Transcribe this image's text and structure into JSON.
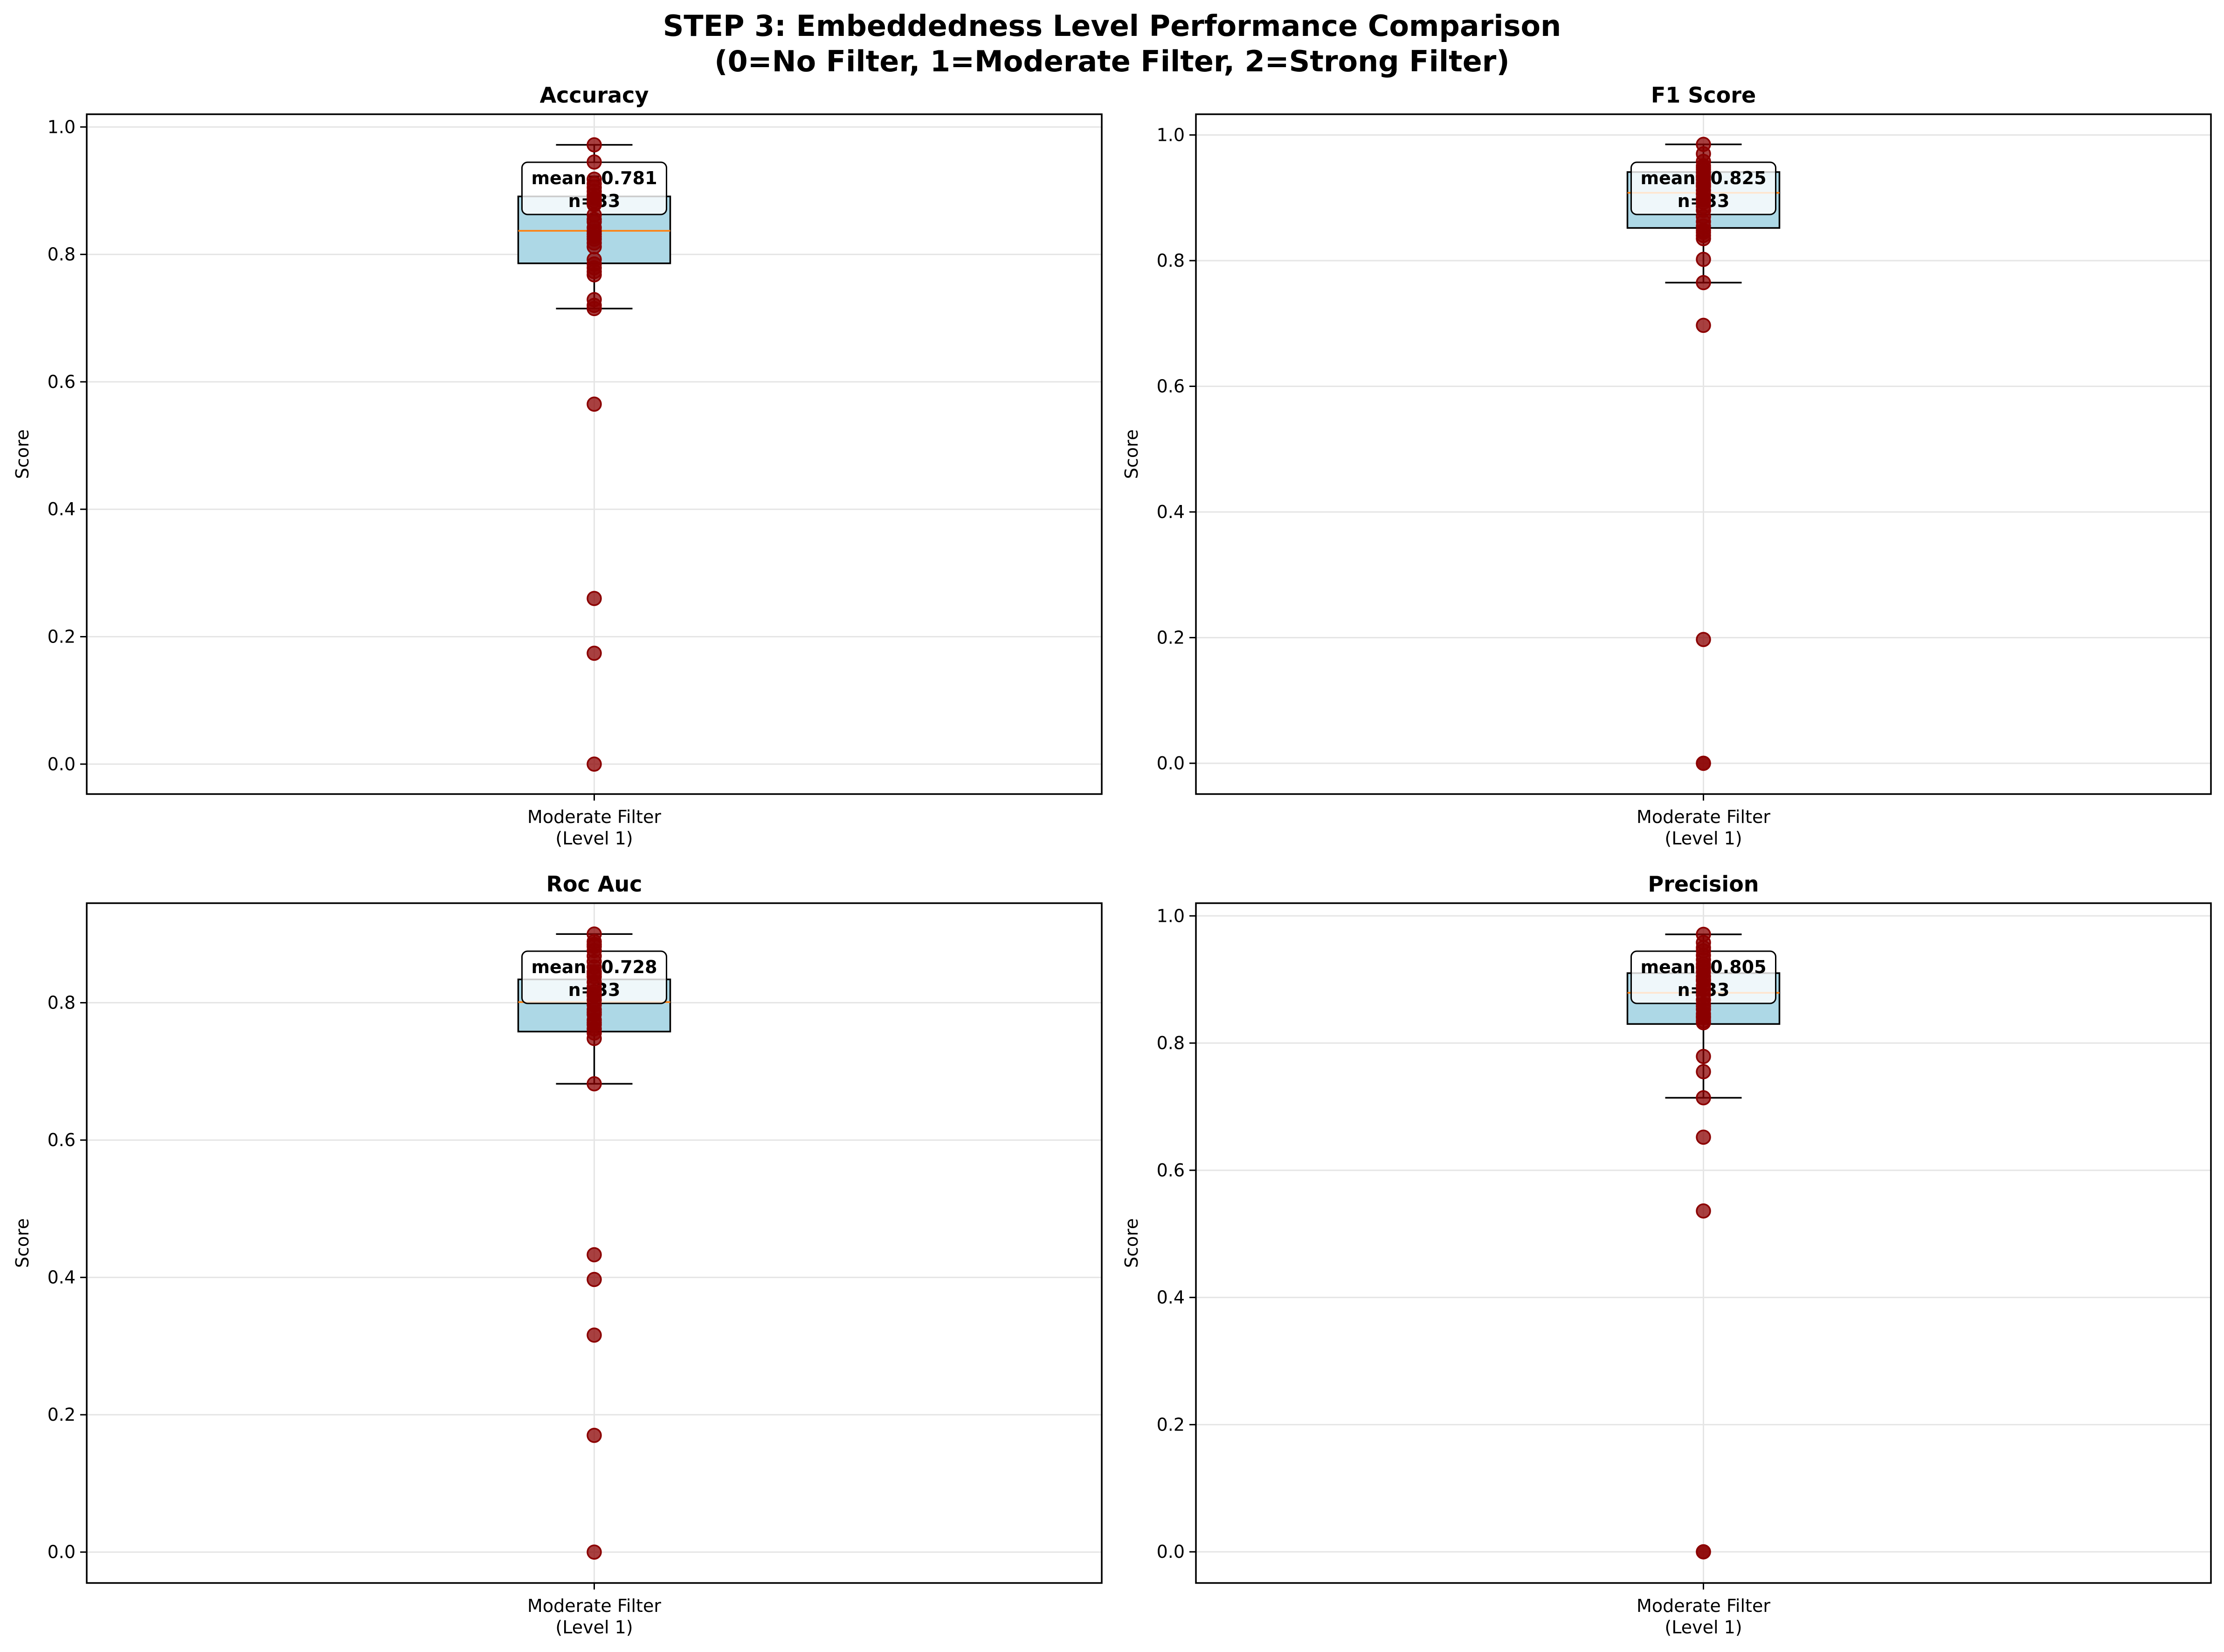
{
  "figure": {
    "title_line1": "STEP 3: Embeddedness Level Performance Comparison",
    "title_line2": "(0=No Filter, 1=Moderate Filter, 2=Strong Filter)"
  },
  "colors": {
    "box_fill": "#add8e6",
    "median": "#ff7f0e",
    "points": "#8b0000",
    "grid": "#e5e5e5"
  },
  "chart_data": [
    {
      "type": "box",
      "title": "Accuracy",
      "ylabel": "Score",
      "categories": [
        "Moderate Filter\n(Level 1)"
      ],
      "ylim": [
        -0.047,
        1.02
      ],
      "yticks": [
        0.0,
        0.2,
        0.4,
        0.6,
        0.8,
        1.0
      ],
      "grid": true,
      "box": {
        "q1": 0.786,
        "median": 0.837,
        "q3": 0.891,
        "whisker_low": 0.715,
        "whisker_high": 0.972
      },
      "annotation": {
        "mean_label": "mean=0.781",
        "n_label": "n=33"
      },
      "points": [
        0.972,
        0.945,
        0.918,
        0.911,
        0.905,
        0.899,
        0.893,
        0.888,
        0.884,
        0.878,
        0.855,
        0.851,
        0.842,
        0.836,
        0.832,
        0.828,
        0.824,
        0.818,
        0.812,
        0.792,
        0.785,
        0.779,
        0.773,
        0.768,
        0.729,
        0.72,
        0.715,
        0.565,
        0.26,
        0.174,
        0.0,
        0.88,
        0.862
      ]
    },
    {
      "type": "box",
      "title": "F1 Score",
      "ylabel": "Score",
      "categories": [
        "Moderate Filter\n(Level 1)"
      ],
      "ylim": [
        -0.049,
        1.033
      ],
      "yticks": [
        0.0,
        0.2,
        0.4,
        0.6,
        0.8,
        1.0
      ],
      "grid": true,
      "box": {
        "q1": 0.852,
        "median": 0.908,
        "q3": 0.941,
        "whisker_low": 0.765,
        "whisker_high": 0.985
      },
      "annotation": {
        "mean_label": "mean=0.825",
        "n_label": "n=33"
      },
      "points": [
        0.985,
        0.97,
        0.958,
        0.951,
        0.945,
        0.94,
        0.935,
        0.929,
        0.923,
        0.918,
        0.912,
        0.906,
        0.9,
        0.893,
        0.886,
        0.87,
        0.855,
        0.848,
        0.84,
        0.835,
        0.802,
        0.765,
        0.697,
        0.197,
        0.0,
        0.0,
        0.948,
        0.933,
        0.92,
        0.897,
        0.88,
        0.862,
        0.845
      ]
    },
    {
      "type": "box",
      "title": "Roc Auc",
      "ylabel": "Score",
      "categories": [
        "Moderate Filter\n(Level 1)"
      ],
      "ylim": [
        -0.045,
        0.945
      ],
      "yticks": [
        0.0,
        0.2,
        0.4,
        0.6,
        0.8
      ],
      "grid": true,
      "box": {
        "q1": 0.758,
        "median": 0.801,
        "q3": 0.834,
        "whisker_low": 0.682,
        "whisker_high": 0.9
      },
      "annotation": {
        "mean_label": "mean=0.728",
        "n_label": "n=33"
      },
      "points": [
        0.9,
        0.889,
        0.882,
        0.876,
        0.868,
        0.86,
        0.852,
        0.845,
        0.838,
        0.83,
        0.823,
        0.816,
        0.81,
        0.804,
        0.797,
        0.79,
        0.783,
        0.775,
        0.768,
        0.762,
        0.756,
        0.748,
        0.682,
        0.433,
        0.397,
        0.316,
        0.17,
        0.0,
        0.885,
        0.842,
        0.812,
        0.786,
        0.771
      ]
    },
    {
      "type": "box",
      "title": "Precision",
      "ylabel": "Score",
      "categories": [
        "Moderate Filter\n(Level 1)"
      ],
      "ylim": [
        -0.049,
        1.02
      ],
      "yticks": [
        0.0,
        0.2,
        0.4,
        0.6,
        0.8,
        1.0
      ],
      "grid": true,
      "box": {
        "q1": 0.83,
        "median": 0.879,
        "q3": 0.91,
        "whisker_low": 0.714,
        "whisker_high": 0.971
      },
      "annotation": {
        "mean_label": "mean=0.805",
        "n_label": "n=33"
      },
      "points": [
        0.971,
        0.958,
        0.945,
        0.938,
        0.931,
        0.924,
        0.918,
        0.912,
        0.905,
        0.898,
        0.891,
        0.884,
        0.876,
        0.868,
        0.861,
        0.853,
        0.846,
        0.84,
        0.835,
        0.832,
        0.779,
        0.755,
        0.714,
        0.652,
        0.536,
        0.0,
        0.0,
        0.95,
        0.92,
        0.9,
        0.886,
        0.858,
        0.842
      ]
    }
  ]
}
